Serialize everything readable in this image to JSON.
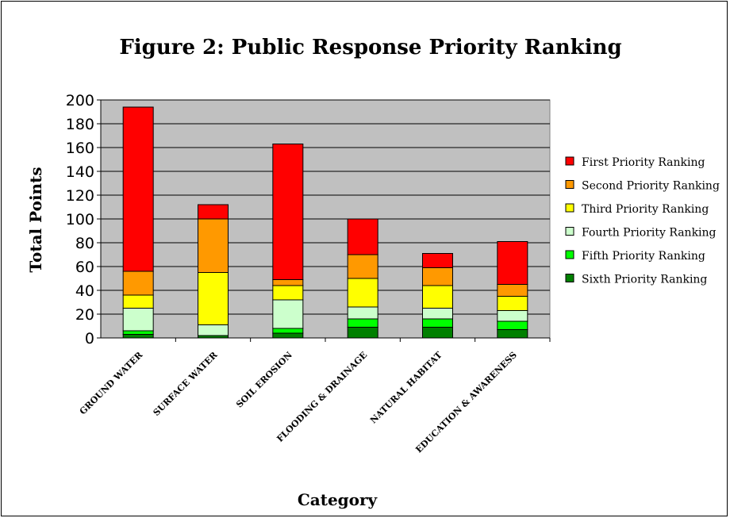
{
  "chart_data": {
    "type": "bar",
    "stacked": true,
    "title": "Figure 2: Public Response Priority Ranking",
    "xlabel": "Category",
    "ylabel": "Total Points",
    "ylim": [
      0,
      200
    ],
    "yticks": [
      0,
      20,
      40,
      60,
      80,
      100,
      120,
      140,
      160,
      180,
      200
    ],
    "grid": true,
    "legend_position": "right",
    "plot_background": "#c0c0c0",
    "categories": [
      "GROUND WATER",
      "SURFACE WATER",
      "SOIL EROSION",
      "FLOODING & DRAINAGE",
      "NATURAL HABITAT",
      "EDUCATION & AWARENESS"
    ],
    "series": [
      {
        "name": "Sixth Priority Ranking",
        "color": "#008000",
        "values": [
          3,
          2,
          4,
          9,
          9,
          7
        ]
      },
      {
        "name": "Fifth Priority Ranking",
        "color": "#00ff00",
        "values": [
          3,
          0,
          4,
          7,
          7,
          7
        ]
      },
      {
        "name": "Fourth Priority Ranking",
        "color": "#ccffcc",
        "values": [
          19,
          9,
          24,
          10,
          9,
          9
        ]
      },
      {
        "name": "Third Priority Ranking",
        "color": "#ffff00",
        "values": [
          11,
          44,
          12,
          24,
          19,
          12
        ]
      },
      {
        "name": "Second Priority Ranking",
        "color": "#ff9900",
        "values": [
          20,
          45,
          5,
          20,
          15,
          10
        ]
      },
      {
        "name": "First Priority Ranking",
        "color": "#ff0000",
        "values": [
          138,
          12,
          114,
          30,
          12,
          36
        ]
      }
    ],
    "legend_order": [
      "First Priority Ranking",
      "Second Priority Ranking",
      "Third Priority Ranking",
      "Fourth Priority Ranking",
      "Fifth Priority Ranking",
      "Sixth Priority Ranking"
    ]
  }
}
